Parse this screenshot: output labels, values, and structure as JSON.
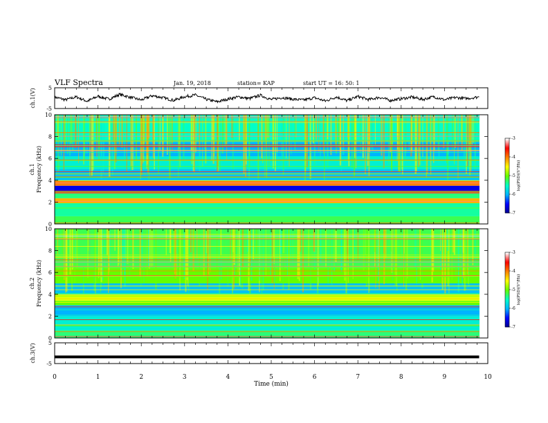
{
  "header": {
    "title": "VLF Spectra",
    "date": "Jan. 19, 2018",
    "station": "station= KAP",
    "start_ut": "start  UT =   16: 50: 1"
  },
  "chart_data": [
    {
      "type": "line",
      "panel": "ch1-waveform",
      "ylabel": "ch.1(V)",
      "ylim": [
        -5,
        5
      ],
      "yticks": [
        "5",
        "-5"
      ],
      "x": [
        0,
        0.25,
        0.5,
        0.75,
        1,
        1.25,
        1.5,
        1.75,
        2,
        2.25,
        2.5,
        2.75,
        3,
        3.25,
        3.5,
        3.75,
        4,
        4.25,
        4.5,
        4.75,
        5,
        5.25,
        5.5,
        5.75,
        6,
        6.25,
        6.5,
        6.75,
        7,
        7.25,
        7.5,
        7.75,
        8,
        8.25,
        8.5,
        8.75,
        9,
        9.25,
        9.5,
        9.8
      ],
      "values": [
        0.5,
        -0.8,
        0.6,
        -1.5,
        0.9,
        -0.5,
        1.8,
        0.4,
        -0.9,
        1.2,
        0.2,
        -1.1,
        0.7,
        1.5,
        -0.6,
        -1.8,
        -0.4,
        0.6,
        -0.2,
        1.4,
        -0.7,
        0.3,
        -0.5,
        -0.9,
        0.2,
        -1.4,
        0.6,
        -1.2,
        0.8,
        -0.7,
        0.4,
        -1.1,
        -0.3,
        0.5,
        -0.6,
        0.7,
        -0.8,
        0.3,
        -0.2,
        0.6
      ]
    },
    {
      "type": "heatmap",
      "panel": "ch1-spectrogram",
      "ylabel": "ch.1\nFrequency (kHz)",
      "ylim": [
        0,
        10
      ],
      "yticks": [
        "0",
        "2",
        "4",
        "6",
        "8",
        "10"
      ],
      "colorbar": {
        "label": "log(PSD)(V²/Hz)",
        "range": [
          -7,
          -3
        ],
        "ticks": [
          "-3",
          "-4",
          "-5",
          "-6",
          "-7"
        ]
      },
      "bands_khz": [
        {
          "from": 0.0,
          "to": 0.7,
          "level": -5.2
        },
        {
          "from": 0.7,
          "to": 1.9,
          "level": -5.4
        },
        {
          "from": 1.9,
          "to": 2.35,
          "level": -4.2
        },
        {
          "from": 2.35,
          "to": 3.0,
          "level": -5.3
        },
        {
          "from": 3.0,
          "to": 3.5,
          "level": -6.6
        },
        {
          "from": 3.5,
          "to": 3.95,
          "level": -4.0
        },
        {
          "from": 3.95,
          "to": 5.0,
          "level": -5.9
        },
        {
          "from": 5.0,
          "to": 6.2,
          "level": -5.6
        },
        {
          "from": 6.2,
          "to": 7.5,
          "level": -6.0
        },
        {
          "from": 7.5,
          "to": 10.0,
          "level": -5.5
        }
      ]
    },
    {
      "type": "heatmap",
      "panel": "ch2-spectrogram",
      "ylabel": "ch.2\nFrequency (kHz)",
      "ylim": [
        0,
        10
      ],
      "yticks": [
        "0",
        "2",
        "4",
        "6",
        "8",
        "10"
      ],
      "colorbar": {
        "label": "log(PSD)(V²/Hz)",
        "range": [
          -7,
          -3
        ],
        "ticks": [
          "-3",
          "-4",
          "-5",
          "-6",
          "-7"
        ]
      },
      "bands_khz": [
        {
          "from": 0.0,
          "to": 0.7,
          "level": -5.3
        },
        {
          "from": 0.7,
          "to": 2.0,
          "level": -5.6
        },
        {
          "from": 2.0,
          "to": 3.0,
          "level": -6.0
        },
        {
          "from": 3.0,
          "to": 3.4,
          "level": -5.0
        },
        {
          "from": 3.4,
          "to": 4.0,
          "level": -4.6
        },
        {
          "from": 4.0,
          "to": 5.0,
          "level": -5.9
        },
        {
          "from": 5.0,
          "to": 6.4,
          "level": -5.0
        },
        {
          "from": 6.4,
          "to": 10.0,
          "level": -5.2
        }
      ]
    },
    {
      "type": "line",
      "panel": "ch3-waveform",
      "ylabel": "ch.3(V)",
      "ylim": [
        -5,
        5
      ],
      "yticks": [
        "5",
        "-5"
      ],
      "x": [
        0,
        9.8
      ],
      "values": [
        -1.8,
        -1.8
      ]
    }
  ],
  "xaxis": {
    "label": "Time (min)",
    "ticks": [
      "0",
      "1",
      "2",
      "3",
      "4",
      "5",
      "6",
      "7",
      "8",
      "9",
      "10"
    ],
    "range": [
      0,
      10
    ]
  },
  "colors": {
    "line": "#000000",
    "colormap": [
      "#00008b",
      "#0000ff",
      "#00b4ff",
      "#00ffc8",
      "#64ff00",
      "#ffff00",
      "#ff8000",
      "#ff0000",
      "#ffffff"
    ]
  }
}
